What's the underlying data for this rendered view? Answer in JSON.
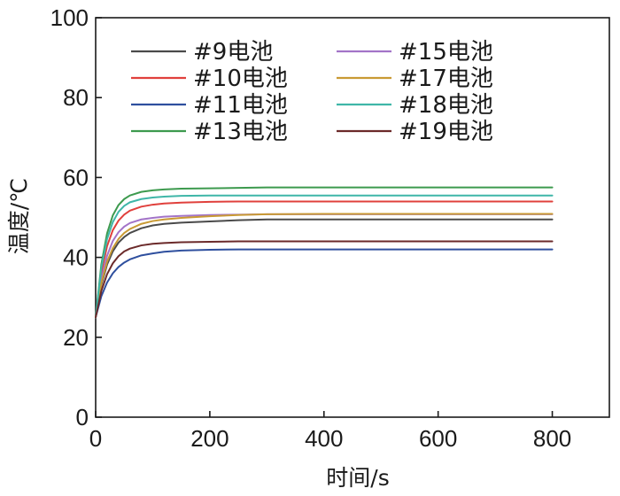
{
  "chart_data": {
    "type": "line",
    "title": "",
    "xlabel": "时间/s",
    "ylabel": "温度/℃",
    "xlim": [
      0,
      900
    ],
    "ylim": [
      0,
      100
    ],
    "xticks": [
      0,
      200,
      400,
      600,
      800
    ],
    "yticks": [
      0,
      20,
      40,
      60,
      80,
      100
    ],
    "grid": false,
    "legend_position": "top",
    "x": [
      0,
      10,
      20,
      30,
      40,
      50,
      60,
      80,
      100,
      120,
      150,
      200,
      250,
      300,
      400,
      500,
      600,
      700,
      800
    ],
    "series": [
      {
        "name": "#9电池",
        "color": "#4a4a4a",
        "values": [
          25,
          33.1,
          38.2,
          41.5,
          43.7,
          45.1,
          46.1,
          47.3,
          48.0,
          48.4,
          48.7,
          49.0,
          49.3,
          49.5,
          49.5,
          49.5,
          49.5,
          49.5,
          49.5
        ]
      },
      {
        "name": "#10电池",
        "color": "#e0403c",
        "values": [
          25,
          36.2,
          42.8,
          46.8,
          49.2,
          50.7,
          51.7,
          52.7,
          53.2,
          53.5,
          53.7,
          53.9,
          54.0,
          54.0,
          54.0,
          54.0,
          54.0,
          54.0,
          54.0
        ]
      },
      {
        "name": "#11电池",
        "color": "#2e4f9e",
        "values": [
          25,
          30.3,
          33.7,
          36.0,
          37.6,
          38.7,
          39.5,
          40.5,
          41.0,
          41.4,
          41.7,
          41.9,
          42.0,
          42.0,
          42.0,
          42.0,
          42.0,
          42.0,
          42.0
        ]
      },
      {
        "name": "#13电池",
        "color": "#3d9a4e",
        "values": [
          25,
          38.3,
          46.0,
          50.5,
          53.1,
          54.6,
          55.5,
          56.4,
          56.8,
          57.0,
          57.2,
          57.3,
          57.4,
          57.5,
          57.5,
          57.5,
          57.5,
          57.5,
          57.5
        ]
      },
      {
        "name": "#15电池",
        "color": "#a374c8",
        "values": [
          25,
          34.5,
          40.4,
          44.1,
          46.3,
          47.7,
          48.6,
          49.5,
          49.9,
          50.2,
          50.4,
          50.6,
          50.7,
          50.8,
          50.8,
          50.8,
          50.8,
          50.8,
          50.8
        ]
      },
      {
        "name": "#17电池",
        "color": "#c99a34",
        "values": [
          25,
          33.5,
          38.9,
          42.3,
          44.6,
          46.1,
          47.1,
          48.4,
          49.1,
          49.5,
          49.9,
          50.3,
          50.6,
          50.8,
          50.9,
          50.9,
          50.9,
          50.9,
          50.9
        ]
      },
      {
        "name": "#18电池",
        "color": "#3fb6a8",
        "values": [
          25,
          37.4,
          44.6,
          48.8,
          51.4,
          52.9,
          53.8,
          54.6,
          55.0,
          55.2,
          55.4,
          55.5,
          55.5,
          55.5,
          55.5,
          55.5,
          55.5,
          55.5,
          55.5
        ]
      },
      {
        "name": "#19电池",
        "color": "#6b2a2a",
        "values": [
          25,
          31.6,
          35.8,
          38.5,
          40.3,
          41.5,
          42.2,
          43.0,
          43.4,
          43.6,
          43.8,
          43.9,
          44.0,
          44.0,
          44.0,
          44.0,
          44.0,
          44.0,
          44.0
        ]
      }
    ]
  }
}
